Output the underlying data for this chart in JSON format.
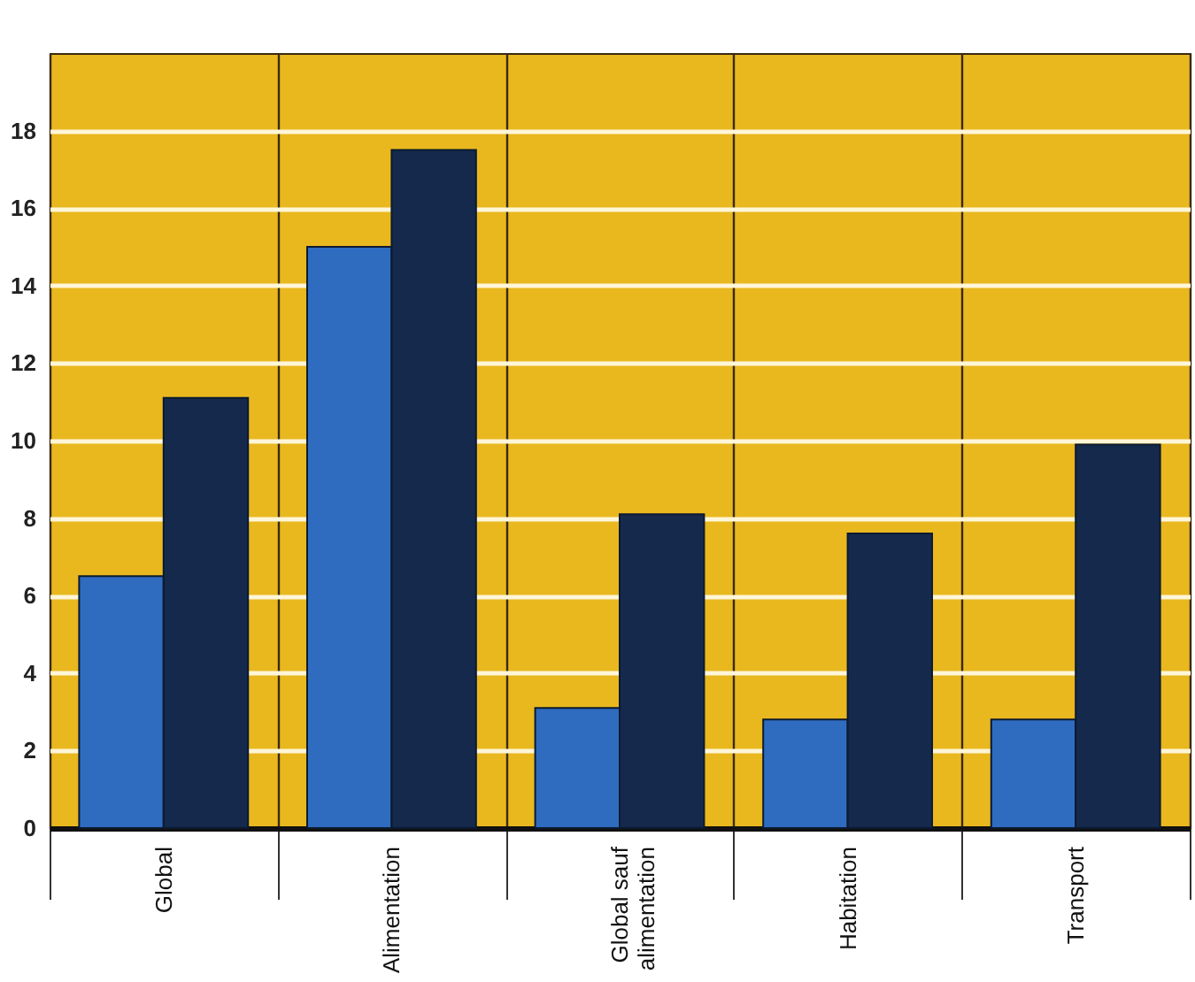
{
  "chart_data": {
    "type": "bar",
    "categories": [
      "Global",
      "Alimentation",
      "Global sauf alimentation",
      "Habitation",
      "Transport"
    ],
    "series": [
      {
        "color": "#2f6cc0",
        "values": [
          6.5,
          15.0,
          3.1,
          2.8,
          2.8
        ]
      },
      {
        "color": "#14294c",
        "values": [
          11.1,
          17.5,
          8.1,
          7.6,
          9.9
        ]
      }
    ],
    "ylim": [
      0,
      20
    ],
    "yticks": [
      0,
      2,
      4,
      6,
      8,
      10,
      12,
      14,
      16,
      18
    ],
    "grid": true,
    "legend": false
  }
}
